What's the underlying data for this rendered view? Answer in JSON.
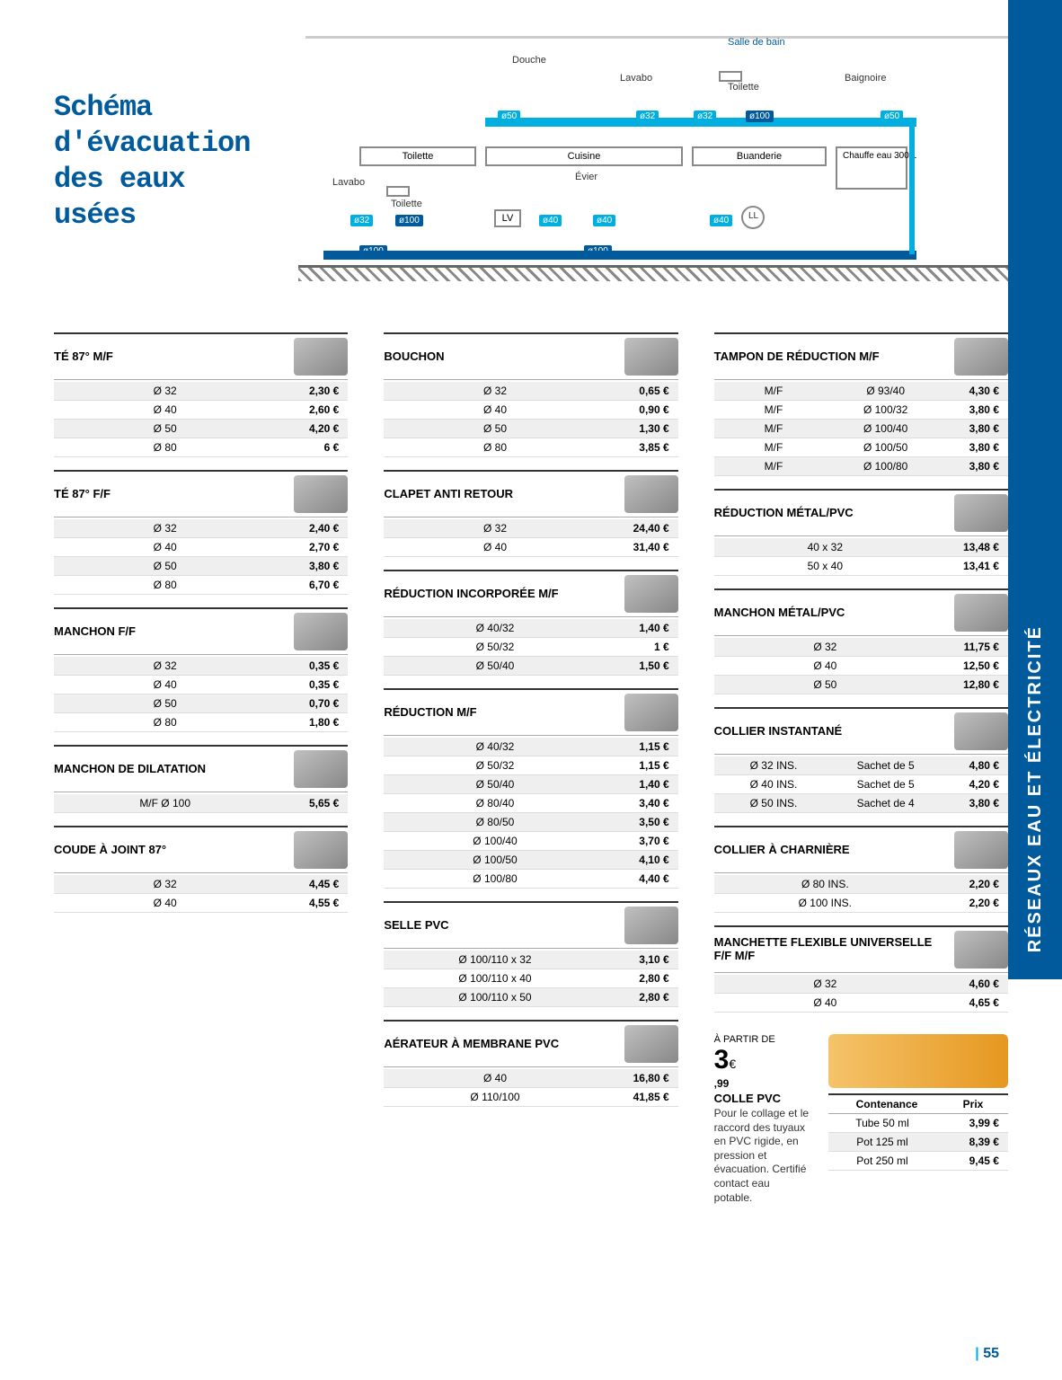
{
  "side_tab": "RÉSEAUX EAU ET ÉLECTRICITÉ",
  "title_lines": [
    "Schéma",
    "d'évacuation",
    "des  eaux  usées"
  ],
  "page_number": "55",
  "diagram": {
    "top_labels": {
      "douche": "Douche",
      "lavabo": "Lavabo",
      "toilette": "Toilette",
      "salle_bain": "Salle de bain",
      "baignoire": "Baignoire"
    },
    "rooms": {
      "toilette": "Toilette",
      "cuisine": "Cuisine",
      "buanderie": "Buanderie",
      "chauffe_eau": "Chauffe eau 300 L"
    },
    "lower_labels": {
      "lavabo": "Lavabo",
      "toilette": "Toilette",
      "evier": "Évier"
    },
    "small_boxes": {
      "lv": "LV",
      "ll": "LL"
    },
    "ports": {
      "p50a": "ø50",
      "p32a": "ø32",
      "p32b": "ø32",
      "p100a": "ø100",
      "p50b": "ø50",
      "p32c": "ø32",
      "p100b": "ø100",
      "p40a": "ø40",
      "p40b": "ø40",
      "p40c": "ø40",
      "p100c": "ø100",
      "p100d": "ø100"
    }
  },
  "sections": {
    "te87mf": {
      "title": "TÉ 87° M/F",
      "rows": [
        {
          "a": "Ø 32",
          "p": "2,30 €"
        },
        {
          "a": "Ø 40",
          "p": "2,60 €"
        },
        {
          "a": "Ø 50",
          "p": "4,20 €"
        },
        {
          "a": "Ø 80",
          "p": "6 €"
        }
      ]
    },
    "te87ff": {
      "title": "TÉ 87° F/F",
      "rows": [
        {
          "a": "Ø 32",
          "p": "2,40 €"
        },
        {
          "a": "Ø 40",
          "p": "2,70 €"
        },
        {
          "a": "Ø 50",
          "p": "3,80 €"
        },
        {
          "a": "Ø 80",
          "p": "6,70 €"
        }
      ]
    },
    "manchon_ff": {
      "title": "MANCHON F/F",
      "rows": [
        {
          "a": "Ø 32",
          "p": "0,35 €"
        },
        {
          "a": "Ø 40",
          "p": "0,35 €"
        },
        {
          "a": "Ø 50",
          "p": "0,70 €"
        },
        {
          "a": "Ø 80",
          "p": "1,80 €"
        }
      ]
    },
    "manchon_dil": {
      "title": "MANCHON DE DILATATION",
      "rows": [
        {
          "a": "M/F Ø 100",
          "p": "5,65 €"
        }
      ]
    },
    "coude": {
      "title": "COUDE À JOINT 87°",
      "rows": [
        {
          "a": "Ø 32",
          "p": "4,45 €"
        },
        {
          "a": "Ø 40",
          "p": "4,55 €"
        }
      ]
    },
    "bouchon": {
      "title": "BOUCHON",
      "rows": [
        {
          "a": "Ø 32",
          "p": "0,65 €"
        },
        {
          "a": "Ø 40",
          "p": "0,90 €"
        },
        {
          "a": "Ø 50",
          "p": "1,30 €"
        },
        {
          "a": "Ø 80",
          "p": "3,85 €"
        }
      ]
    },
    "clapet": {
      "title": "CLAPET ANTI RETOUR",
      "rows": [
        {
          "a": "Ø 32",
          "p": "24,40 €"
        },
        {
          "a": "Ø 40",
          "p": "31,40 €"
        }
      ]
    },
    "reduc_inc": {
      "title": "RÉDUCTION INCORPORÉE M/F",
      "rows": [
        {
          "a": "Ø 40/32",
          "p": "1,40 €"
        },
        {
          "a": "Ø 50/32",
          "p": "1 €"
        },
        {
          "a": "Ø 50/40",
          "p": "1,50 €"
        }
      ]
    },
    "reduc_mf": {
      "title": "RÉDUCTION M/F",
      "rows": [
        {
          "a": "Ø 40/32",
          "p": "1,15 €"
        },
        {
          "a": "Ø 50/32",
          "p": "1,15 €"
        },
        {
          "a": "Ø 50/40",
          "p": "1,40 €"
        },
        {
          "a": "Ø 80/40",
          "p": "3,40 €"
        },
        {
          "a": "Ø 80/50",
          "p": "3,50 €"
        },
        {
          "a": "Ø 100/40",
          "p": "3,70 €"
        },
        {
          "a": "Ø 100/50",
          "p": "4,10 €"
        },
        {
          "a": "Ø 100/80",
          "p": "4,40 €"
        }
      ]
    },
    "selle": {
      "title": "SELLE PVC",
      "rows": [
        {
          "a": "Ø 100/110 x 32",
          "p": "3,10 €"
        },
        {
          "a": "Ø 100/110 x 40",
          "p": "2,80 €"
        },
        {
          "a": "Ø 100/110 x 50",
          "p": "2,80 €"
        }
      ]
    },
    "aerateur": {
      "title": "AÉRATEUR À MEMBRANE PVC",
      "rows": [
        {
          "a": "Ø 40",
          "p": "16,80 €"
        },
        {
          "a": "Ø 110/100",
          "p": "41,85 €"
        }
      ]
    },
    "tampon": {
      "title": "TAMPON DE RÉDUCTION M/F",
      "rows": [
        {
          "a": "M/F",
          "b": "Ø 93/40",
          "p": "4,30 €"
        },
        {
          "a": "M/F",
          "b": "Ø 100/32",
          "p": "3,80 €"
        },
        {
          "a": "M/F",
          "b": "Ø 100/40",
          "p": "3,80 €"
        },
        {
          "a": "M/F",
          "b": "Ø 100/50",
          "p": "3,80 €"
        },
        {
          "a": "M/F",
          "b": "Ø 100/80",
          "p": "3,80 €"
        }
      ]
    },
    "reduc_metal": {
      "title": "RÉDUCTION MÉTAL/PVC",
      "rows": [
        {
          "a": "40 x 32",
          "p": "13,48 €"
        },
        {
          "a": "50 x 40",
          "p": "13,41 €"
        }
      ]
    },
    "manchon_metal": {
      "title": "MANCHON MÉTAL/PVC",
      "rows": [
        {
          "a": "Ø 32",
          "p": "11,75 €"
        },
        {
          "a": "Ø 40",
          "p": "12,50 €"
        },
        {
          "a": "Ø 50",
          "p": "12,80 €"
        }
      ]
    },
    "collier_inst": {
      "title": "COLLIER INSTANTANÉ",
      "rows": [
        {
          "a": "Ø 32 INS.",
          "b": "Sachet de 5",
          "p": "4,80 €"
        },
        {
          "a": "Ø 40 INS.",
          "b": "Sachet de 5",
          "p": "4,20 €"
        },
        {
          "a": "Ø 50 INS.",
          "b": "Sachet de 4",
          "p": "3,80 €"
        }
      ]
    },
    "collier_char": {
      "title": "COLLIER À CHARNIÈRE",
      "rows": [
        {
          "a": "Ø 80 INS.",
          "p": "2,20 €"
        },
        {
          "a": "Ø 100 INS.",
          "p": "2,20 €"
        }
      ]
    },
    "manchette": {
      "title": "MANCHETTE FLEXIBLE UNIVERSELLE F/F M/F",
      "rows": [
        {
          "a": "Ø 32",
          "p": "4,60 €"
        },
        {
          "a": "Ø 40",
          "p": "4,65 €"
        }
      ]
    }
  },
  "glue": {
    "start": "À PARTIR DE",
    "price_int": "3",
    "price_unit": "€",
    "price_dec": ",99",
    "title": "COLLE PVC",
    "desc": "Pour le collage et le raccord des tuyaux en PVC rigide, en pression et évacuation. Certifié contact eau potable.",
    "table_hdr": {
      "c1": "Contenance",
      "c3": "Prix"
    },
    "rows": [
      {
        "a": "Tube 50 ml",
        "p": "3,99 €"
      },
      {
        "a": "Pot 125 ml",
        "p": "8,39 €"
      },
      {
        "a": "Pot 250 ml",
        "p": "9,45 €"
      }
    ]
  }
}
